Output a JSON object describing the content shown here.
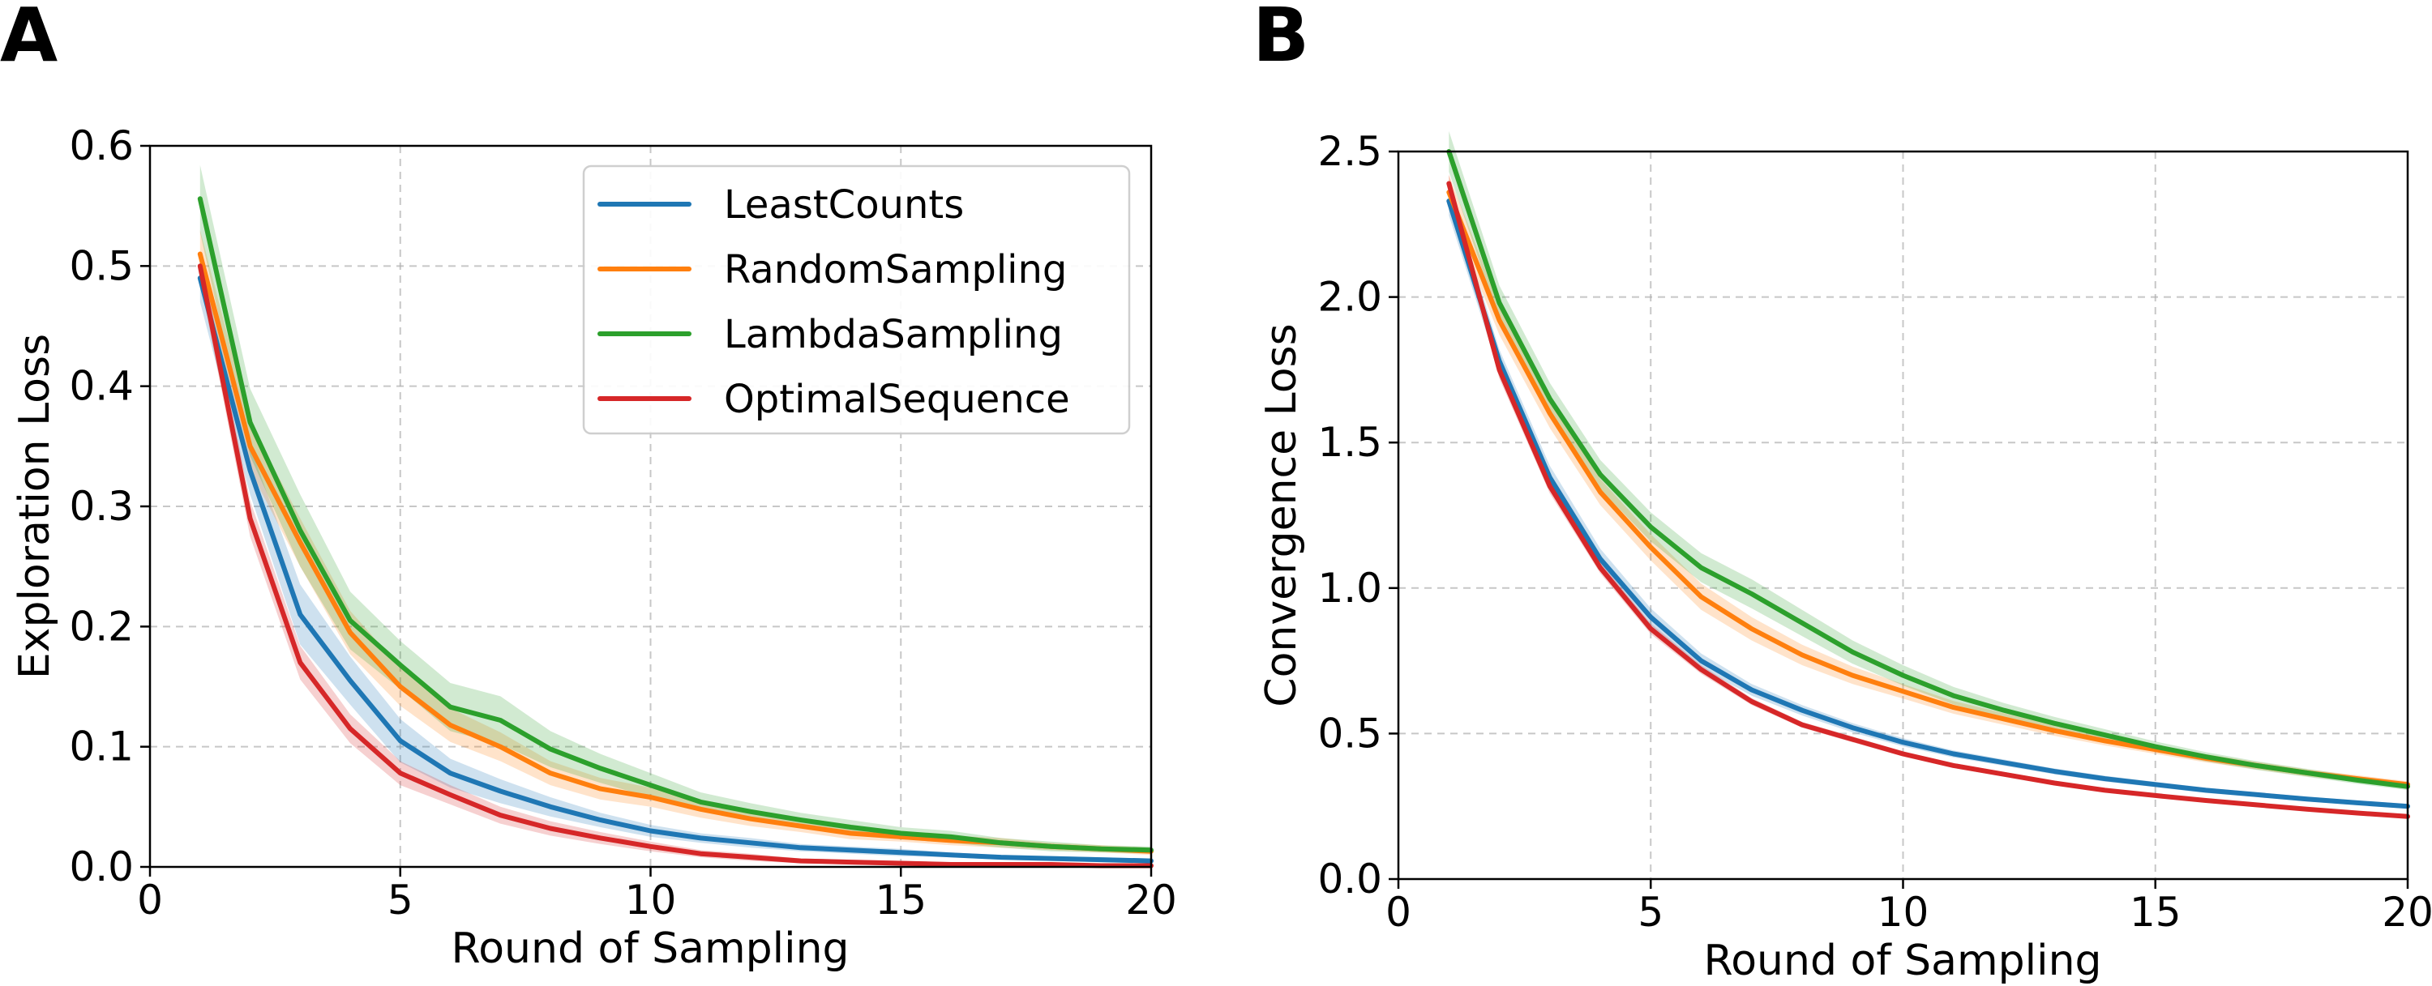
{
  "colors": {
    "LeastCounts": "#1f77b4",
    "RandomSampling": "#ff7f0e",
    "LambdaSampling": "#2ca02c",
    "OptimalSequence": "#d62728"
  },
  "chart_data": [
    {
      "panel_label": "A",
      "type": "line",
      "title": "",
      "xlabel": "Round of Sampling",
      "ylabel": "Exploration Loss",
      "xlim": [
        0,
        20
      ],
      "ylim": [
        0,
        0.6
      ],
      "xticks": [
        "0",
        "5",
        "10",
        "15",
        "20"
      ],
      "xtick_values": [
        0,
        5,
        10,
        15,
        20
      ],
      "yticks": [
        "0.0",
        "0.1",
        "0.2",
        "0.3",
        "0.4",
        "0.5",
        "0.6"
      ],
      "ytick_values": [
        0,
        0.1,
        0.2,
        0.3,
        0.4,
        0.5,
        0.6
      ],
      "grid": true,
      "legend": "top-right",
      "x": [
        1,
        2,
        3,
        4,
        5,
        6,
        7,
        8,
        9,
        10,
        11,
        12,
        13,
        14,
        15,
        16,
        17,
        18,
        19,
        20
      ],
      "series": [
        {
          "name": "LeastCounts",
          "values": [
            0.49,
            0.33,
            0.21,
            0.155,
            0.105,
            0.078,
            0.063,
            0.05,
            0.039,
            0.03,
            0.024,
            0.02,
            0.016,
            0.014,
            0.012,
            0.01,
            0.008,
            0.007,
            0.006,
            0.005
          ],
          "spread": [
            0.02,
            0.02,
            0.025,
            0.02,
            0.018,
            0.012,
            0.01,
            0.008,
            0.006,
            0.005,
            0.004,
            0.004,
            0.003,
            0.003,
            0.003,
            0.002,
            0.002,
            0.002,
            0.002,
            0.002
          ]
        },
        {
          "name": "RandomSampling",
          "values": [
            0.51,
            0.35,
            0.27,
            0.195,
            0.15,
            0.118,
            0.1,
            0.078,
            0.065,
            0.058,
            0.048,
            0.04,
            0.034,
            0.028,
            0.025,
            0.022,
            0.02,
            0.017,
            0.015,
            0.013
          ],
          "spread": [
            0.02,
            0.02,
            0.02,
            0.018,
            0.016,
            0.014,
            0.012,
            0.01,
            0.009,
            0.008,
            0.007,
            0.006,
            0.005,
            0.005,
            0.004,
            0.004,
            0.004,
            0.003,
            0.003,
            0.003
          ]
        },
        {
          "name": "LambdaSampling",
          "values": [
            0.556,
            0.37,
            0.28,
            0.205,
            0.168,
            0.133,
            0.122,
            0.098,
            0.082,
            0.068,
            0.054,
            0.046,
            0.039,
            0.033,
            0.028,
            0.025,
            0.02,
            0.017,
            0.015,
            0.014
          ],
          "spread": [
            0.028,
            0.028,
            0.03,
            0.024,
            0.02,
            0.02,
            0.02,
            0.015,
            0.012,
            0.01,
            0.008,
            0.007,
            0.006,
            0.006,
            0.005,
            0.005,
            0.004,
            0.004,
            0.003,
            0.003
          ]
        },
        {
          "name": "OptimalSequence",
          "values": [
            0.5,
            0.29,
            0.17,
            0.115,
            0.078,
            0.06,
            0.043,
            0.032,
            0.024,
            0.017,
            0.011,
            0.008,
            0.005,
            0.004,
            0.003,
            0.002,
            0.002,
            0.002,
            0.001,
            0.001
          ],
          "spread": [
            0.012,
            0.015,
            0.014,
            0.012,
            0.01,
            0.008,
            0.007,
            0.006,
            0.005,
            0.004,
            0.003,
            0.003,
            0.002,
            0.002,
            0.002,
            0.002,
            0.001,
            0.001,
            0.001,
            0.001
          ]
        }
      ]
    },
    {
      "panel_label": "B",
      "type": "line",
      "title": "",
      "xlabel": "Round of Sampling",
      "ylabel": "Convergence Loss",
      "xlim": [
        0,
        20
      ],
      "ylim": [
        0,
        2.5
      ],
      "xticks": [
        "0",
        "5",
        "10",
        "15",
        "20"
      ],
      "xtick_values": [
        0,
        5,
        10,
        15,
        20
      ],
      "yticks": [
        "0.0",
        "0.5",
        "1.0",
        "1.5",
        "2.0",
        "2.5"
      ],
      "ytick_values": [
        0,
        0.5,
        1.0,
        1.5,
        2.0,
        2.5
      ],
      "grid": true,
      "legend": "",
      "x": [
        1,
        2,
        3,
        4,
        5,
        6,
        7,
        8,
        9,
        10,
        11,
        12,
        13,
        14,
        15,
        16,
        17,
        18,
        19,
        20
      ],
      "series": [
        {
          "name": "LeastCounts",
          "values": [
            2.33,
            1.78,
            1.38,
            1.1,
            0.9,
            0.75,
            0.65,
            0.58,
            0.52,
            0.47,
            0.43,
            0.4,
            0.37,
            0.345,
            0.325,
            0.305,
            0.29,
            0.275,
            0.262,
            0.25
          ],
          "spread": [
            0.05,
            0.04,
            0.04,
            0.035,
            0.03,
            0.025,
            0.02,
            0.018,
            0.016,
            0.014,
            0.012,
            0.011,
            0.01,
            0.01,
            0.009,
            0.009,
            0.008,
            0.008,
            0.008,
            0.008
          ]
        },
        {
          "name": "RandomSampling",
          "values": [
            2.36,
            1.92,
            1.6,
            1.33,
            1.14,
            0.97,
            0.86,
            0.77,
            0.7,
            0.645,
            0.59,
            0.55,
            0.51,
            0.475,
            0.445,
            0.415,
            0.39,
            0.365,
            0.345,
            0.325
          ],
          "spread": [
            0.06,
            0.05,
            0.05,
            0.045,
            0.045,
            0.045,
            0.04,
            0.035,
            0.03,
            0.025,
            0.022,
            0.02,
            0.018,
            0.016,
            0.015,
            0.014,
            0.013,
            0.012,
            0.012,
            0.011
          ]
        },
        {
          "name": "LambdaSampling",
          "values": [
            2.5,
            1.98,
            1.65,
            1.39,
            1.21,
            1.07,
            0.98,
            0.88,
            0.78,
            0.7,
            0.63,
            0.58,
            0.535,
            0.495,
            0.455,
            0.42,
            0.39,
            0.365,
            0.34,
            0.318
          ],
          "spread": [
            0.07,
            0.06,
            0.055,
            0.05,
            0.05,
            0.05,
            0.05,
            0.045,
            0.04,
            0.035,
            0.03,
            0.025,
            0.022,
            0.02,
            0.018,
            0.016,
            0.015,
            0.014,
            0.013,
            0.012
          ]
        },
        {
          "name": "OptimalSequence",
          "values": [
            2.39,
            1.75,
            1.35,
            1.07,
            0.86,
            0.72,
            0.61,
            0.53,
            0.48,
            0.43,
            0.39,
            0.36,
            0.33,
            0.305,
            0.287,
            0.27,
            0.255,
            0.24,
            0.227,
            0.215
          ],
          "spread": [
            0.03,
            0.03,
            0.025,
            0.02,
            0.018,
            0.015,
            0.012,
            0.01,
            0.01,
            0.009,
            0.008,
            0.008,
            0.007,
            0.007,
            0.006,
            0.006,
            0.006,
            0.005,
            0.005,
            0.005
          ]
        }
      ]
    }
  ]
}
